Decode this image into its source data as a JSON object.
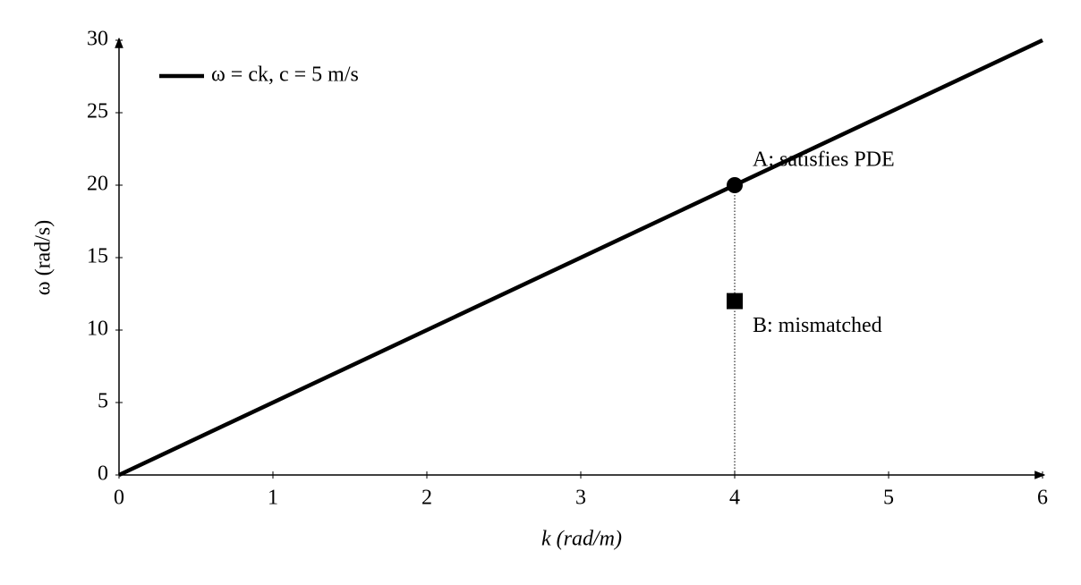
{
  "chart_data": {
    "type": "line",
    "x_label": "k (rad/m)",
    "y_label": "ω (rad/s)",
    "xlim": [
      0,
      6
    ],
    "ylim": [
      0,
      30
    ],
    "xticks": [
      0,
      1,
      2,
      3,
      4,
      5,
      6
    ],
    "yticks": [
      0,
      5,
      10,
      15,
      20,
      25,
      30
    ],
    "series": [
      {
        "name": "ω = ck, c = 5 m/s",
        "color": "#000000",
        "x": [
          0,
          6
        ],
        "values": [
          0,
          30
        ]
      }
    ],
    "points": [
      {
        "label": "A: satisfies PDE",
        "x": 4,
        "y": 20,
        "marker": "circle",
        "color": "#000000"
      },
      {
        "label": "B: mismatched",
        "x": 4,
        "y": 12,
        "marker": "square",
        "color": "#000000"
      }
    ]
  }
}
